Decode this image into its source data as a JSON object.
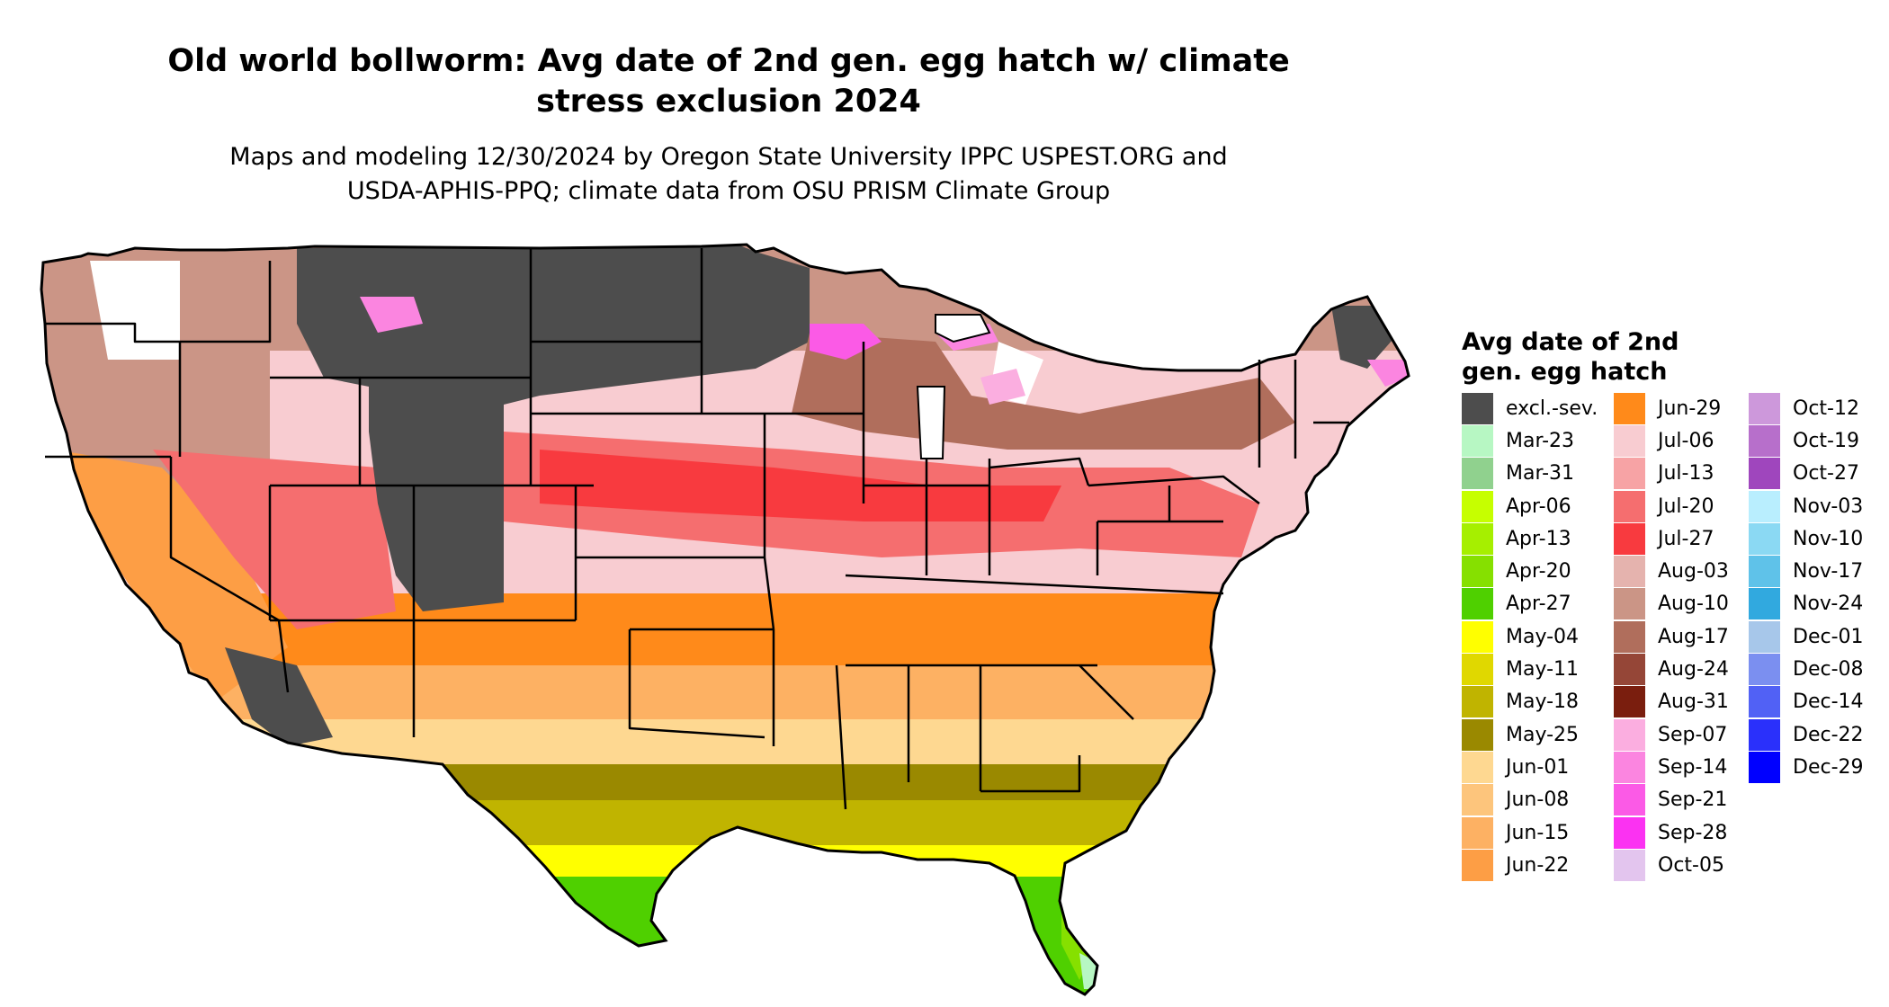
{
  "header": {
    "title_line1": "Old world bollworm: Avg date of 2nd gen. egg hatch w/ climate",
    "title_line2": "stress exclusion 2024",
    "subtitle_line1": "Maps and modeling 12/30/2024 by Oregon State University IPPC USPEST.ORG and",
    "subtitle_line2": "USDA-APHIS-PPQ; climate data from OSU PRISM Climate Group"
  },
  "legend": {
    "title_line1": "Avg date of 2nd",
    "title_line2": "gen. egg hatch",
    "items": [
      {
        "label": "excl.-sev.",
        "color": "#4d4d4d"
      },
      {
        "label": "Mar-23",
        "color": "#b7f7c3"
      },
      {
        "label": "Mar-31",
        "color": "#90d18e"
      },
      {
        "label": "Apr-06",
        "color": "#c6ff00"
      },
      {
        "label": "Apr-13",
        "color": "#a6ef00"
      },
      {
        "label": "Apr-20",
        "color": "#86e000"
      },
      {
        "label": "Apr-27",
        "color": "#4fd000"
      },
      {
        "label": "May-04",
        "color": "#ffff00"
      },
      {
        "label": "May-11",
        "color": "#e0d800"
      },
      {
        "label": "May-18",
        "color": "#c0b400"
      },
      {
        "label": "May-25",
        "color": "#9a8900"
      },
      {
        "label": "Jun-01",
        "color": "#fed891"
      },
      {
        "label": "Jun-08",
        "color": "#fdc57c"
      },
      {
        "label": "Jun-15",
        "color": "#fdb163"
      },
      {
        "label": "Jun-22",
        "color": "#fd9e45"
      },
      {
        "label": "Jun-29",
        "color": "#ff8a1a"
      },
      {
        "label": "Jul-06",
        "color": "#f8ccd1"
      },
      {
        "label": "Jul-13",
        "color": "#f7a3a5"
      },
      {
        "label": "Jul-20",
        "color": "#f56e6f"
      },
      {
        "label": "Jul-27",
        "color": "#f83a3f"
      },
      {
        "label": "Aug-03",
        "color": "#e5b3ae"
      },
      {
        "label": "Aug-10",
        "color": "#cb9586"
      },
      {
        "label": "Aug-17",
        "color": "#b06e5c"
      },
      {
        "label": "Aug-24",
        "color": "#954637"
      },
      {
        "label": "Aug-31",
        "color": "#7a1e0e"
      },
      {
        "label": "Sep-07",
        "color": "#fbaee0"
      },
      {
        "label": "Sep-14",
        "color": "#fb85e0"
      },
      {
        "label": "Sep-21",
        "color": "#fb5ae6"
      },
      {
        "label": "Sep-28",
        "color": "#fb32f2"
      },
      {
        "label": "Oct-05",
        "color": "#e3c5ee"
      },
      {
        "label": "Oct-12",
        "color": "#cd98db"
      },
      {
        "label": "Oct-19",
        "color": "#b76fcb"
      },
      {
        "label": "Oct-27",
        "color": "#9f46bd"
      },
      {
        "label": "Nov-03",
        "color": "#b9eefe"
      },
      {
        "label": "Nov-10",
        "color": "#8bd9f3"
      },
      {
        "label": "Nov-17",
        "color": "#5fc2e9"
      },
      {
        "label": "Nov-24",
        "color": "#31a9df"
      },
      {
        "label": "Dec-01",
        "color": "#a7c7ea"
      },
      {
        "label": "Dec-08",
        "color": "#7b8ff0"
      },
      {
        "label": "Dec-14",
        "color": "#5161f5"
      },
      {
        "label": "Dec-22",
        "color": "#2a30fb"
      },
      {
        "label": "Dec-29",
        "color": "#0000ff"
      }
    ]
  }
}
